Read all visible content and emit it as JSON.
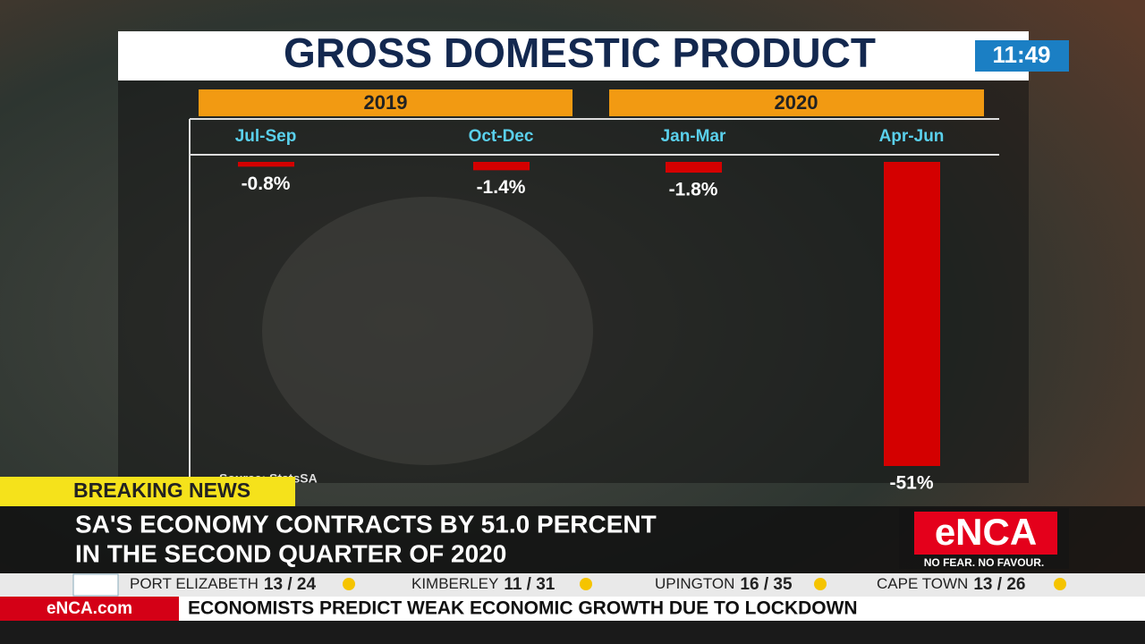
{
  "chart_data": {
    "type": "bar",
    "title": "GROSS DOMESTIC PRODUCT",
    "groups": [
      "2019",
      "2020"
    ],
    "categories": [
      "Jul-Sep",
      "Oct-Dec",
      "Jan-Mar",
      "Apr-Jun"
    ],
    "values": [
      -0.8,
      -1.4,
      -1.8,
      -51
    ],
    "value_labels": [
      "-0.8%",
      "-1.4%",
      "-1.8%",
      "-51%"
    ],
    "color": "#d40000",
    "source": "Source: StatsSA"
  },
  "clock": "11:49",
  "breaking": "BREAKING NEWS",
  "headline": [
    "SA'S ECONOMY CONTRACTS BY 51.0 PERCENT",
    "IN THE SECOND QUARTER OF 2020"
  ],
  "weather": [
    {
      "city": "PORT ELIZABETH",
      "temps": "13 / 24"
    },
    {
      "city": "KIMBERLEY",
      "temps": "11 / 31"
    },
    {
      "city": "UPINGTON",
      "temps": "16 / 35"
    },
    {
      "city": "CAPE TOWN",
      "temps": "13 / 26"
    }
  ],
  "site": "eNCA.com",
  "ticker": "ECONOMISTS PREDICT WEAK ECONOMIC GROWTH DUE TO LOCKDOWN",
  "logo": {
    "name": "eNCA",
    "tagline": "NO FEAR. NO FAVOUR."
  }
}
